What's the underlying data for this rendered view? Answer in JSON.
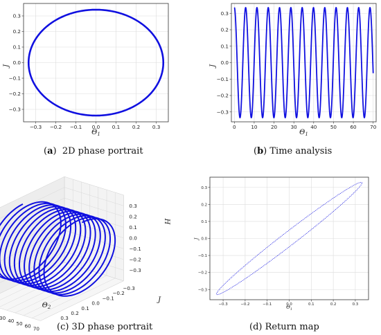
{
  "captions": {
    "a_label": "a",
    "a_text": "2D phase portrait",
    "b_label": "b",
    "b_text": "Time analysis",
    "c_text": "(c) 3D phase portrait",
    "d_text": "(d) Return map"
  },
  "colors": {
    "series": "#1010e0",
    "grid": "#dcdcdc",
    "axis": "#333333"
  },
  "chart_data": [
    {
      "id": "a",
      "type": "line",
      "title": "",
      "xlabel": "Θ1",
      "ylabel": "J",
      "xlim": [
        -0.36,
        0.36
      ],
      "ylim": [
        -0.38,
        0.38
      ],
      "xticks": [
        -0.3,
        -0.2,
        -0.1,
        0.0,
        0.1,
        0.2,
        0.3
      ],
      "yticks": [
        -0.3,
        -0.2,
        -0.1,
        0.0,
        0.1,
        0.2,
        0.3
      ],
      "xtick_labels": [
        "−0.3",
        "−0.2",
        "−0.1",
        "0.0",
        "0.1",
        "0.2",
        "0.3"
      ],
      "ytick_labels": [
        "−0.3",
        "−0.2",
        "−0.1",
        "0.0",
        "0.1",
        "0.2",
        "0.3"
      ],
      "grid": true,
      "series": [
        {
          "shape": "ellipse",
          "x_amplitude": 0.335,
          "y_amplitude": 0.34
        }
      ]
    },
    {
      "id": "b",
      "type": "line",
      "title": "",
      "xlabel": "Θ1",
      "ylabel": "J",
      "xlim": [
        -1.5,
        71.5
      ],
      "ylim": [
        -0.36,
        0.36
      ],
      "xticks": [
        0,
        10,
        20,
        30,
        40,
        50,
        60,
        70
      ],
      "yticks": [
        -0.3,
        -0.2,
        -0.1,
        0.0,
        0.1,
        0.2,
        0.3
      ],
      "xtick_labels": [
        "0",
        "10",
        "20",
        "30",
        "40",
        "50",
        "60",
        "70"
      ],
      "ytick_labels": [
        "−0.3",
        "−0.2",
        "−0.1",
        "0.0",
        "0.1",
        "0.2",
        "0.3"
      ],
      "grid": true,
      "series": [
        {
          "shape": "cosine",
          "amplitude": 0.335,
          "period": 5.7,
          "x_range": [
            0,
            70
          ]
        }
      ]
    },
    {
      "id": "c",
      "type": "line",
      "title": "",
      "xlabel": "Θ2",
      "ylabel": "J",
      "zlabel": "H",
      "x_ticks": [
        0,
        10,
        20,
        30,
        40,
        50,
        60,
        70
      ],
      "y_ticks": [
        -0.3,
        -0.2,
        -0.1,
        0.0,
        0.1,
        0.2,
        0.3
      ],
      "y_tick_labels": [
        "−0.3",
        "−0.2",
        "−0.1",
        "0.0",
        "0.1",
        "0.2",
        "0.3"
      ],
      "z_ticks": [
        -0.3,
        -0.2,
        -0.1,
        0.0,
        0.1,
        0.2,
        0.3
      ],
      "z_tick_labels": [
        "−0.3",
        "−0.2",
        "−0.1",
        "0.0",
        "0.1",
        "0.2",
        "0.3"
      ],
      "grid": true,
      "series": [
        {
          "shape": "helix",
          "radius": 0.33,
          "turns": 12,
          "x_range": [
            0,
            70
          ]
        }
      ]
    },
    {
      "id": "d",
      "type": "scatter",
      "title": "",
      "xlabel": "Θ1",
      "ylabel": "J",
      "xlim": [
        -0.36,
        0.36
      ],
      "ylim": [
        -0.36,
        0.36
      ],
      "xticks": [
        -0.3,
        -0.2,
        -0.1,
        0.0,
        0.1,
        0.2,
        0.3
      ],
      "yticks": [
        -0.3,
        -0.2,
        -0.1,
        0.0,
        0.1,
        0.2,
        0.3
      ],
      "xtick_labels": [
        "−0.3",
        "−0.2",
        "−0.1",
        "0.0",
        "0.1",
        "0.2",
        "0.3"
      ],
      "ytick_labels": [
        "−0.3",
        "−0.2",
        "−0.1",
        "0.0",
        "0.1",
        "0.2",
        "0.3"
      ],
      "grid": true,
      "series": [
        {
          "shape": "thin-ellipse",
          "x_amplitude": 0.33,
          "y_amplitude": 0.33,
          "phase_lag": 0.15
        }
      ]
    }
  ]
}
